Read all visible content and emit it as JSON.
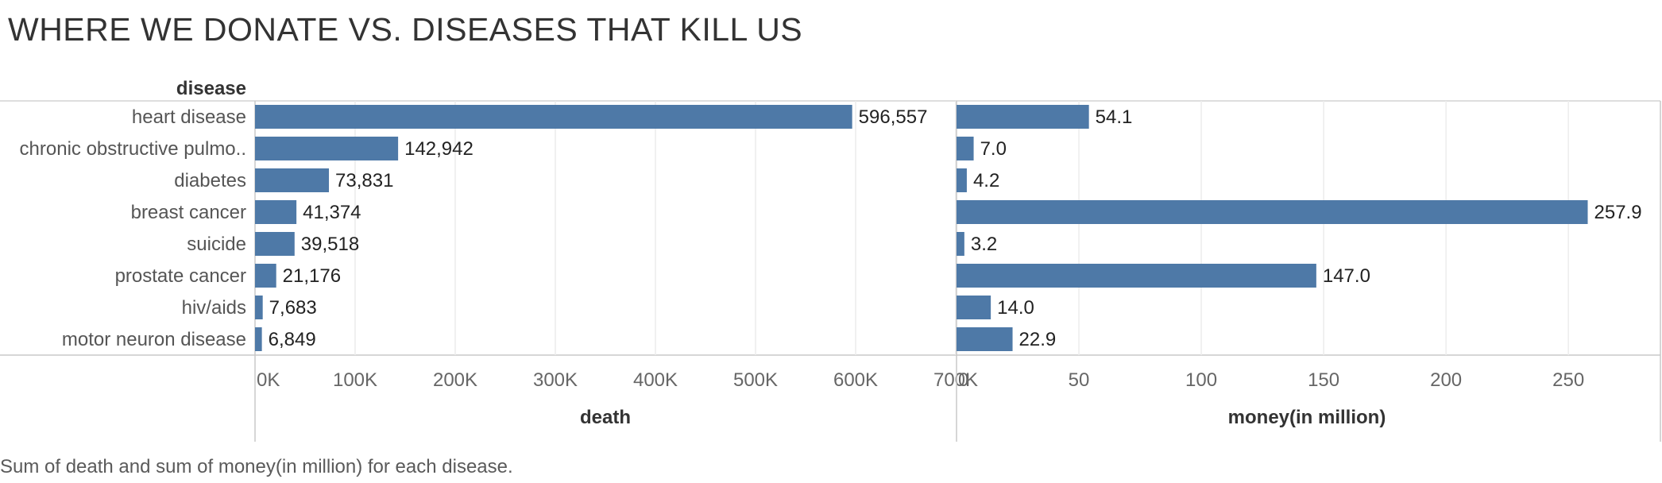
{
  "chart_data": {
    "type": "bar",
    "orientation": "horizontal",
    "title": "WHERE WE DONATE VS. DISEASES THAT KILL US",
    "row_header": "disease",
    "categories": [
      "heart disease",
      "chronic obstructive pulmo..",
      "diabetes",
      "breast cancer",
      "suicide",
      "prostate cancer",
      "hiv/aids",
      "motor neuron disease"
    ],
    "panels": [
      {
        "name": "death",
        "xlabel": "death",
        "values": [
          596557,
          142942,
          73831,
          41374,
          39518,
          21176,
          7683,
          6849
        ],
        "value_labels": [
          "596,557",
          "142,942",
          "73,831",
          "41,374",
          "39,518",
          "21,176",
          "7,683",
          "6,849"
        ],
        "xlim": [
          0,
          700000
        ],
        "ticks": [
          0,
          100000,
          200000,
          300000,
          400000,
          500000,
          600000,
          700000
        ],
        "tick_labels": [
          "0K",
          "100K",
          "200K",
          "300K",
          "400K",
          "500K",
          "600K",
          "700K"
        ]
      },
      {
        "name": "money(in million)",
        "xlabel": "money(in million)",
        "values": [
          54.1,
          7.0,
          4.2,
          257.9,
          3.2,
          147.0,
          14.0,
          22.9
        ],
        "value_labels": [
          "54.1",
          "7.0",
          "4.2",
          "257.9",
          "3.2",
          "147.0",
          "14.0",
          "22.9"
        ],
        "xlim": [
          0,
          285
        ],
        "ticks": [
          0,
          50,
          100,
          150,
          200,
          250
        ],
        "tick_labels": [
          "0",
          "50",
          "100",
          "150",
          "200",
          "250"
        ]
      }
    ],
    "grid": true,
    "legend": "none",
    "bar_color": "#4e79a7"
  },
  "caption": "Sum of death and sum of money(in million) for each disease."
}
